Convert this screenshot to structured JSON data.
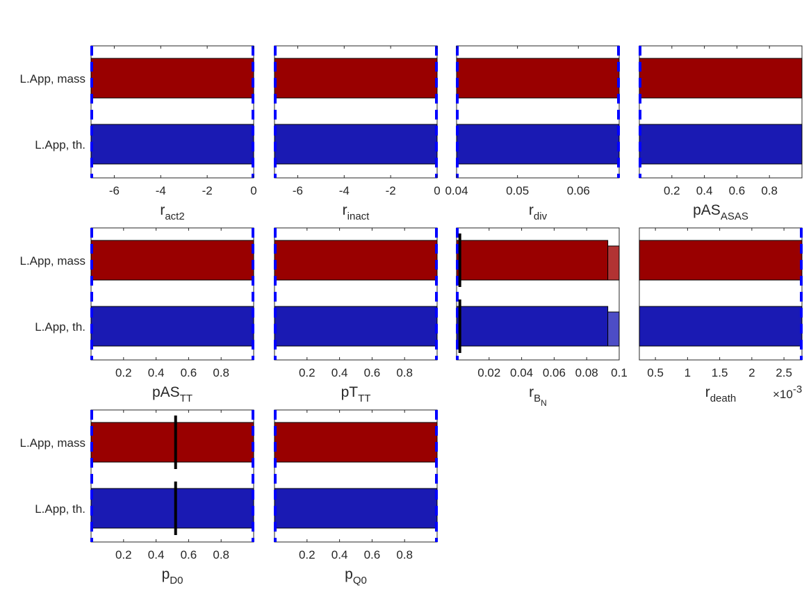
{
  "colors": {
    "mass": "#990000",
    "th": "#1a1ab3",
    "mass_light": "#b23333",
    "th_light": "#4d4dc6",
    "dashed_limit": "#0000ff",
    "marker": "#000000",
    "axis": "#262626"
  },
  "chart_data": [
    {
      "type": "bar",
      "orientation": "horizontal",
      "categories": [
        "L.App, mass",
        "L.App, th."
      ],
      "xlabel": {
        "base": "r",
        "sub": "act2"
      },
      "xlim": [
        -7,
        0
      ],
      "xticks": [
        -6,
        -4,
        -2,
        0
      ],
      "xtick_labels": [
        "-6",
        "-4",
        "-2",
        "0"
      ],
      "series": [
        {
          "category": "L.App, mass",
          "range": [
            -7,
            0
          ]
        },
        {
          "category": "L.App, th.",
          "range": [
            -7,
            0
          ]
        }
      ],
      "bounds": [
        -7,
        0
      ],
      "dashed_lines": [
        -7,
        0
      ]
    },
    {
      "type": "bar",
      "orientation": "horizontal",
      "categories": [
        "L.App, mass",
        "L.App, th."
      ],
      "xlabel": {
        "base": "r",
        "sub": "inact"
      },
      "xlim": [
        -7,
        0
      ],
      "xticks": [
        -6,
        -4,
        -2,
        0
      ],
      "xtick_labels": [
        "-6",
        "-4",
        "-2",
        "0"
      ],
      "series": [
        {
          "category": "L.App, mass",
          "range": [
            -7,
            0
          ]
        },
        {
          "category": "L.App, th.",
          "range": [
            -7,
            0
          ]
        }
      ],
      "bounds": [
        -7,
        0
      ],
      "dashed_lines": [
        -7,
        0
      ]
    },
    {
      "type": "bar",
      "orientation": "horizontal",
      "categories": [
        "L.App, mass",
        "L.App, th."
      ],
      "xlabel": {
        "base": "r",
        "sub": "div"
      },
      "xlim": [
        0.04,
        0.0667
      ],
      "xticks": [
        0.04,
        0.05,
        0.06
      ],
      "xtick_labels": [
        "0.04",
        "0.05",
        "0.06"
      ],
      "series": [
        {
          "category": "L.App, mass",
          "range": [
            0.04,
            0.0667
          ]
        },
        {
          "category": "L.App, th.",
          "range": [
            0.04,
            0.0667
          ]
        }
      ],
      "bounds": [
        0.04,
        0.0667
      ],
      "dashed_lines": [
        0.04,
        0.0667
      ]
    },
    {
      "type": "bar",
      "orientation": "horizontal",
      "categories": [
        "L.App, mass",
        "L.App, th."
      ],
      "xlabel": {
        "base": "pAS",
        "sub": "ASAS"
      },
      "xlim": [
        0,
        1
      ],
      "xticks": [
        0.2,
        0.4,
        0.6,
        0.8
      ],
      "xtick_labels": [
        "0.2",
        "0.4",
        "0.6",
        "0.8"
      ],
      "series": [
        {
          "category": "L.App, mass",
          "range": [
            0,
            1
          ]
        },
        {
          "category": "L.App, th.",
          "range": [
            0,
            1
          ]
        }
      ],
      "bounds": [
        0,
        1
      ],
      "dashed_lines": [
        0
      ]
    },
    {
      "type": "bar",
      "orientation": "horizontal",
      "categories": [
        "L.App, mass",
        "L.App, th."
      ],
      "xlabel": {
        "base": "pAS",
        "sub": "TT"
      },
      "xlim": [
        0,
        1
      ],
      "xticks": [
        0.2,
        0.4,
        0.6,
        0.8
      ],
      "xtick_labels": [
        "0.2",
        "0.4",
        "0.6",
        "0.8"
      ],
      "series": [
        {
          "category": "L.App, mass",
          "range": [
            0,
            1
          ]
        },
        {
          "category": "L.App, th.",
          "range": [
            0,
            1
          ]
        }
      ],
      "bounds": [
        0,
        1
      ],
      "dashed_lines": [
        0,
        1
      ]
    },
    {
      "type": "bar",
      "orientation": "horizontal",
      "categories": [
        "L.App, mass",
        "L.App, th."
      ],
      "xlabel": {
        "base": "pT",
        "sub": "TT"
      },
      "xlim": [
        0,
        1
      ],
      "xticks": [
        0.2,
        0.4,
        0.6,
        0.8
      ],
      "xtick_labels": [
        "0.2",
        "0.4",
        "0.6",
        "0.8"
      ],
      "series": [
        {
          "category": "L.App, mass",
          "range": [
            0,
            1
          ]
        },
        {
          "category": "L.App, th.",
          "range": [
            0,
            1
          ]
        }
      ],
      "bounds": [
        0,
        1
      ],
      "dashed_lines": [
        0,
        1
      ]
    },
    {
      "type": "bar",
      "orientation": "horizontal",
      "categories": [
        "L.App, mass",
        "L.App, th."
      ],
      "xlabel": {
        "base": "r",
        "sub": "B",
        "subsub": "N"
      },
      "xlim": [
        0,
        0.1
      ],
      "xticks": [
        0.02,
        0.04,
        0.06,
        0.08,
        0.1
      ],
      "xtick_labels": [
        "0.02",
        "0.04",
        "0.06",
        "0.08",
        "0.1"
      ],
      "series": [
        {
          "category": "L.App, mass",
          "range": [
            0,
            0.093
          ],
          "extension": [
            0.093,
            0.1
          ]
        },
        {
          "category": "L.App, th.",
          "range": [
            0,
            0.093
          ],
          "extension": [
            0.093,
            0.1
          ]
        }
      ],
      "bounds": [
        0,
        0.1
      ],
      "dashed_lines": [
        0
      ],
      "markers": [
        0.002
      ]
    },
    {
      "type": "bar",
      "orientation": "horizontal",
      "categories": [
        "L.App, mass",
        "L.App, th."
      ],
      "xlabel": {
        "base": "r",
        "sub": "death"
      },
      "exponent_label": "×10",
      "exponent_value": "-3",
      "xlim": [
        0.25,
        2.78
      ],
      "xticks": [
        0.5,
        1,
        1.5,
        2,
        2.5
      ],
      "xtick_labels": [
        "0.5",
        "1",
        "1.5",
        "2",
        "2.5"
      ],
      "series": [
        {
          "category": "L.App, mass",
          "range": [
            0.25,
            2.78
          ]
        },
        {
          "category": "L.App, th.",
          "range": [
            0.25,
            2.78
          ]
        }
      ],
      "bounds": [
        0.25,
        2.78
      ],
      "dashed_lines": [
        2.78
      ]
    },
    {
      "type": "bar",
      "orientation": "horizontal",
      "categories": [
        "L.App, mass",
        "L.App, th."
      ],
      "xlabel": {
        "base": "p",
        "sub": "D0"
      },
      "xlim": [
        0,
        1
      ],
      "xticks": [
        0.2,
        0.4,
        0.6,
        0.8
      ],
      "xtick_labels": [
        "0.2",
        "0.4",
        "0.6",
        "0.8"
      ],
      "series": [
        {
          "category": "L.App, mass",
          "range": [
            0,
            1
          ]
        },
        {
          "category": "L.App, th.",
          "range": [
            0,
            1
          ]
        }
      ],
      "bounds": [
        0,
        1
      ],
      "dashed_lines": [
        0,
        1
      ],
      "markers": [
        0.52
      ]
    },
    {
      "type": "bar",
      "orientation": "horizontal",
      "categories": [
        "L.App, mass",
        "L.App, th."
      ],
      "xlabel": {
        "base": "p",
        "sub": "Q0"
      },
      "xlim": [
        0,
        1
      ],
      "xticks": [
        0.2,
        0.4,
        0.6,
        0.8
      ],
      "xtick_labels": [
        "0.2",
        "0.4",
        "0.6",
        "0.8"
      ],
      "series": [
        {
          "category": "L.App, mass",
          "range": [
            0,
            1
          ]
        },
        {
          "category": "L.App, th.",
          "range": [
            0,
            1
          ]
        }
      ],
      "bounds": [
        0,
        1
      ],
      "dashed_lines": [
        0,
        1
      ]
    }
  ]
}
